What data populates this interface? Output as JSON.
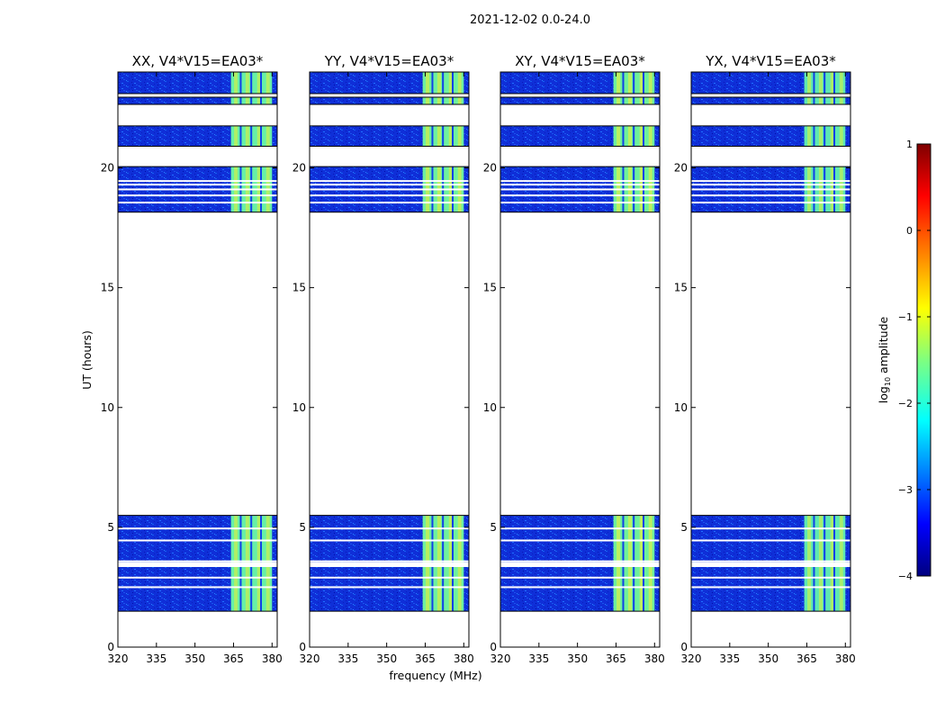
{
  "chart_data": {
    "type": "heatmap",
    "title": "2021-12-02 0.0-24.0",
    "xlabel": "frequency (MHz)",
    "ylabel": "UT (hours)",
    "xlim": [
      320,
      382
    ],
    "ylim": [
      0,
      24
    ],
    "xticks": [
      "320",
      "335",
      "350",
      "365",
      "380"
    ],
    "yticks": [
      "0",
      "5",
      "10",
      "15",
      "20"
    ],
    "colorbar": {
      "label": "log",
      "label_sub": "10",
      "label_rest": " amplitude",
      "range": [
        -4,
        1
      ],
      "ticks": [
        "1",
        "0",
        "−1",
        "−2",
        "−3",
        "−4"
      ],
      "tick_values": [
        1,
        0,
        -1,
        -2,
        -3,
        -4
      ],
      "colors": [
        "#00007f",
        "#0000ff",
        "#007fff",
        "#00ffff",
        "#7fff7f",
        "#ffff00",
        "#ff7f00",
        "#ff0000",
        "#7f0000"
      ]
    },
    "panels": [
      {
        "title": "XX, V4*V15=EA03*",
        "band_color": "#66f0a8",
        "band_hot": "#c8f050"
      },
      {
        "title": "YY, V4*V15=EA03*",
        "band_color": "#6ef0a0",
        "band_hot": "#d2ee48"
      },
      {
        "title": "XY, V4*V15=EA03*",
        "band_color": "#6ef09c",
        "band_hot": "#d8f04a"
      },
      {
        "title": "YX, V4*V15=EA03*",
        "band_color": "#5ee8b2",
        "band_hot": "#c2f052"
      }
    ],
    "data_blocks_ut": [
      [
        1.5,
        5.5
      ],
      [
        18.15,
        20.05
      ],
      [
        20.9,
        21.75
      ],
      [
        22.65,
        22.95
      ],
      [
        23.1,
        24.0
      ]
    ],
    "gap_lines_ut": [
      1.3,
      2.5,
      2.9,
      3.38,
      3.45,
      3.5,
      3.58,
      4.45,
      4.95,
      18.55,
      18.85,
      19.1,
      19.3,
      19.45
    ],
    "band_freq_mhz": [
      364,
      380
    ],
    "channel_gaps_mhz": [
      367.8,
      371.9,
      375.7
    ],
    "units_note": "UT hours vs frequency MHz; color = log10 amplitude"
  }
}
